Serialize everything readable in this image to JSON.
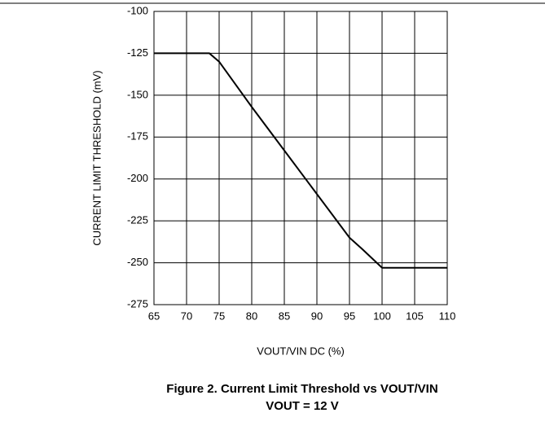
{
  "chart_data": {
    "type": "line",
    "x_label": "VOUT/VIN DC (%)",
    "y_label": "CURRENT LIMIT THRESHOLD (mV)",
    "caption": [
      "Figure 2. Current Limit Threshold vs VOUT/VIN",
      "VOUT = 12 V"
    ],
    "x": [
      65,
      73.5,
      75,
      80,
      85,
      90,
      95,
      97,
      100,
      110
    ],
    "series": [
      {
        "name": "Current Limit Threshold",
        "color": "#000000",
        "values": [
          -125,
          -125,
          -130,
          -157,
          -183,
          -209,
          -235,
          -242,
          -253,
          -253
        ]
      }
    ],
    "xlim": [
      65,
      110
    ],
    "xticks": [
      65,
      70,
      75,
      80,
      85,
      90,
      95,
      100,
      105,
      110
    ],
    "ylim": [
      -275,
      -100
    ],
    "yticks": [
      -100,
      -125,
      -150,
      -175,
      -200,
      -225,
      -250,
      -275
    ],
    "grid": true
  }
}
